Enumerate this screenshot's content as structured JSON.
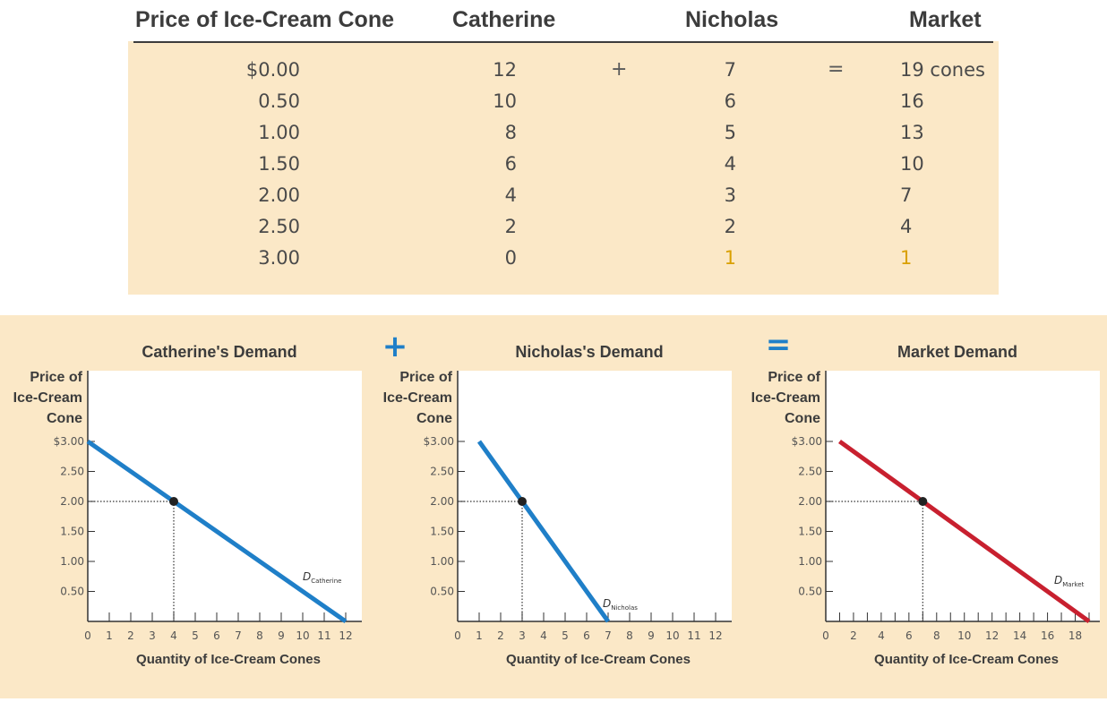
{
  "table": {
    "headers": [
      "Price of Ice-Cream Cone",
      "Catherine",
      "Nicholas",
      "Market"
    ],
    "operators": {
      "plus": "+",
      "equals": "="
    },
    "rows": [
      {
        "price": "$0.00",
        "catherine": "12",
        "nicholas": "7",
        "market": "19 cones"
      },
      {
        "price": "0.50",
        "catherine": "10",
        "nicholas": "6",
        "market": "16"
      },
      {
        "price": "1.00",
        "catherine": "8",
        "nicholas": "5",
        "market": "13"
      },
      {
        "price": "1.50",
        "catherine": "6",
        "nicholas": "4",
        "market": "10"
      },
      {
        "price": "2.00",
        "catherine": "4",
        "nicholas": "3",
        "market": "7"
      },
      {
        "price": "2.50",
        "catherine": "2",
        "nicholas": "2",
        "market": "4"
      },
      {
        "price": "3.00",
        "catherine": "0",
        "nicholas": "1",
        "market": "1"
      }
    ],
    "highlight_color": "#d9a000"
  },
  "operators_between_graphs": [
    "+",
    "="
  ],
  "colors": {
    "background": "#fbe8c7",
    "catherine": "#1f7fc8",
    "nicholas": "#1f7fc8",
    "market": "#c8202f",
    "operator": "#1f7fc8"
  },
  "chart_data": [
    {
      "type": "line",
      "title": "Catherine's Demand",
      "ylabel": [
        "Price of",
        "Ice-Cream",
        "Cone"
      ],
      "xlabel": "Quantity of Ice-Cream Cones",
      "ytick_labels": [
        "$3.00",
        "2.50",
        "2.00",
        "1.50",
        "1.00",
        "0.50"
      ],
      "xticks": [
        0,
        1,
        2,
        3,
        4,
        5,
        6,
        7,
        8,
        9,
        10,
        11,
        12
      ],
      "xlim": [
        0,
        12
      ],
      "ylim": [
        0,
        3
      ],
      "series": [
        {
          "name": "D",
          "subscript": "Catherine",
          "x": [
            0,
            12
          ],
          "y": [
            3.0,
            0.0
          ]
        }
      ],
      "highlight": {
        "x": 4,
        "y": 2.0
      }
    },
    {
      "type": "line",
      "title": "Nicholas's Demand",
      "ylabel": [
        "Price of",
        "Ice-Cream",
        "Cone"
      ],
      "xlabel": "Quantity of Ice-Cream Cones",
      "ytick_labels": [
        "$3.00",
        "2.50",
        "2.00",
        "1.50",
        "1.00",
        "0.50"
      ],
      "xticks": [
        0,
        1,
        2,
        3,
        4,
        5,
        6,
        7,
        8,
        9,
        10,
        11,
        12
      ],
      "xlim": [
        0,
        12
      ],
      "ylim": [
        0,
        3
      ],
      "series": [
        {
          "name": "D",
          "subscript": "Nicholas",
          "x": [
            1,
            7
          ],
          "y": [
            3.0,
            0.0
          ]
        }
      ],
      "highlight": {
        "x": 3,
        "y": 2.0
      }
    },
    {
      "type": "line",
      "title": "Market Demand",
      "ylabel": [
        "Price of",
        "Ice-Cream",
        "Cone"
      ],
      "xlabel": "Quantity of Ice-Cream Cones",
      "ytick_labels": [
        "$3.00",
        "2.50",
        "2.00",
        "1.50",
        "1.00",
        "0.50"
      ],
      "xticks": [
        0,
        2,
        4,
        6,
        8,
        10,
        12,
        14,
        16,
        18
      ],
      "xlim": [
        0,
        19
      ],
      "ylim": [
        0,
        3
      ],
      "series": [
        {
          "name": "D",
          "subscript": "Market",
          "x": [
            1,
            19
          ],
          "y": [
            3.0,
            0.0
          ]
        }
      ],
      "highlight": {
        "x": 7,
        "y": 2.0
      }
    }
  ]
}
